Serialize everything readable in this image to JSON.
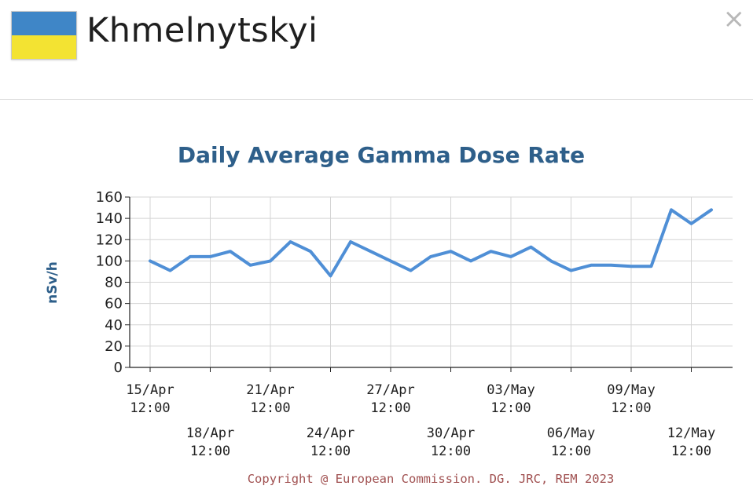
{
  "header": {
    "title": "Khmelnytskyi",
    "flag_colors": [
      "#3f86c7",
      "#f3e332"
    ],
    "close_glyph": "×"
  },
  "colors": {
    "chart_title": "#2e5f8a",
    "line": "#4f8fd6",
    "ylabel": "#2e5f8a",
    "grid": "#d4d4d4",
    "copyright": "#a05050"
  },
  "chart_data": {
    "type": "line",
    "title": "Daily Average Gamma Dose Rate",
    "xlabel": "",
    "ylabel": "nSv/h",
    "ylim": [
      0,
      160
    ],
    "yticks": [
      0,
      20,
      40,
      60,
      80,
      100,
      120,
      140,
      160
    ],
    "xlim": [
      "2023-04-15 12:00",
      "2023-05-13 12:00"
    ],
    "x_tick_labels": [
      [
        "15/Apr",
        "12:00"
      ],
      [
        "18/Apr",
        "12:00"
      ],
      [
        "21/Apr",
        "12:00"
      ],
      [
        "24/Apr",
        "12:00"
      ],
      [
        "27/Apr",
        "12:00"
      ],
      [
        "30/Apr",
        "12:00"
      ],
      [
        "03/May",
        "12:00"
      ],
      [
        "06/May",
        "12:00"
      ],
      [
        "09/May",
        "12:00"
      ],
      [
        "12/May",
        "12:00"
      ]
    ],
    "grid": true,
    "series": [
      {
        "x": [
          "2023-04-15 12:00",
          "2023-04-16 12:00",
          "2023-04-17 12:00",
          "2023-04-18 12:00",
          "2023-04-19 12:00",
          "2023-04-20 12:00",
          "2023-04-21 12:00",
          "2023-04-22 12:00",
          "2023-04-23 12:00",
          "2023-04-24 12:00",
          "2023-04-25 12:00",
          "2023-04-26 12:00",
          "2023-04-27 12:00",
          "2023-04-28 12:00",
          "2023-04-29 12:00",
          "2023-04-30 12:00",
          "2023-05-01 12:00",
          "2023-05-02 12:00",
          "2023-05-03 12:00",
          "2023-05-04 12:00",
          "2023-05-05 12:00",
          "2023-05-06 12:00",
          "2023-05-07 12:00",
          "2023-05-08 12:00",
          "2023-05-09 12:00",
          "2023-05-10 12:00",
          "2023-05-11 12:00",
          "2023-05-12 12:00",
          "2023-05-13 12:00"
        ],
        "values": [
          100,
          91,
          104,
          104,
          109,
          96,
          100,
          118,
          109,
          86,
          118,
          109,
          100,
          91,
          104,
          109,
          100,
          109,
          104,
          113,
          100,
          91,
          96,
          96,
          95,
          95,
          148,
          135,
          148
        ]
      }
    ],
    "copyright": "Copyright @ European Commission. DG. JRC, REM 2023"
  }
}
